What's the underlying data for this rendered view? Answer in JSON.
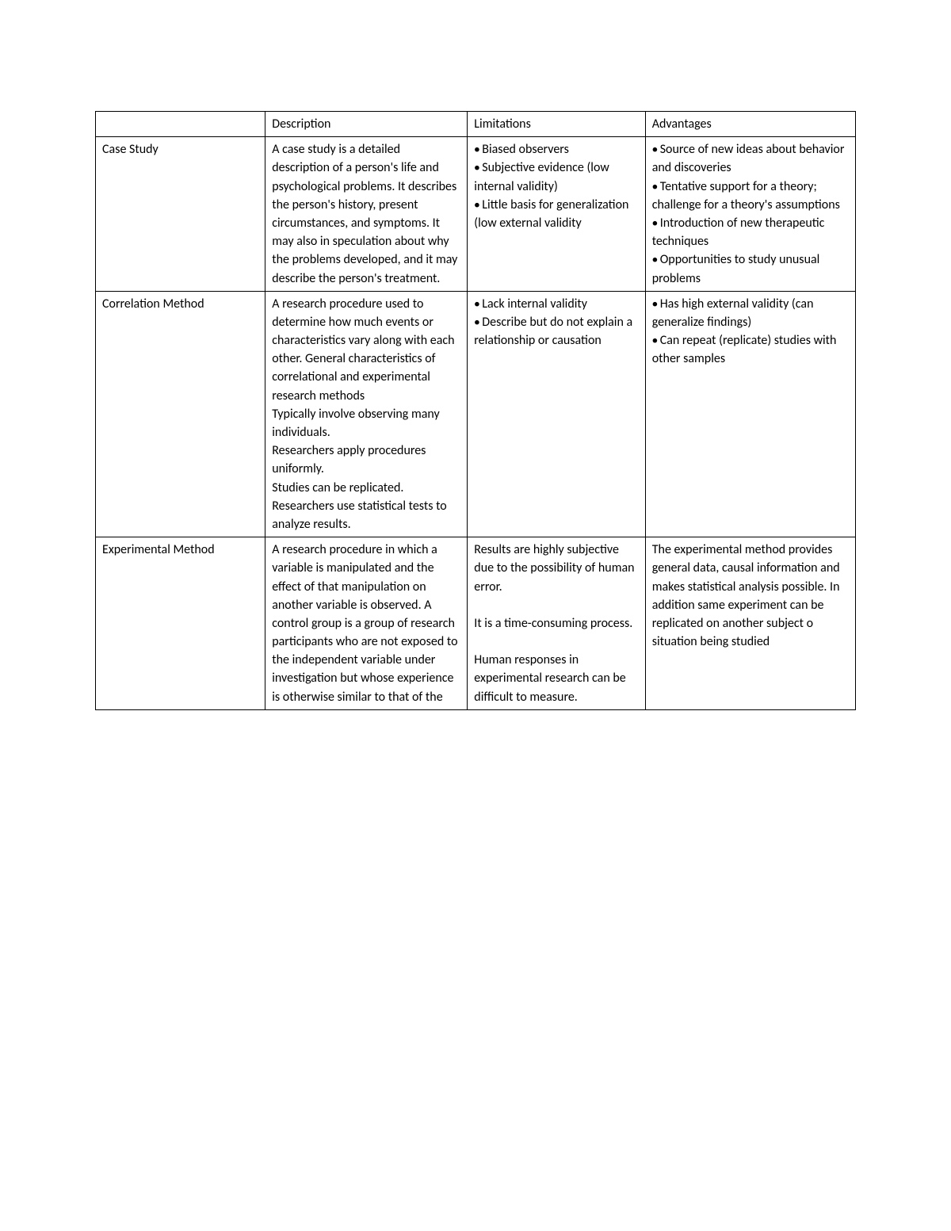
{
  "table": {
    "columns": [
      "",
      "Description",
      "Limitations",
      "Advantages"
    ],
    "col_widths_pct": [
      21,
      25,
      22,
      26
    ],
    "border_color": "#000000",
    "font_family": "Calibri, Arial, sans-serif",
    "font_size_pt": 12,
    "text_color": "#000000",
    "background_color": "#ffffff",
    "rows": [
      {
        "name": "Case Study",
        "description": "A case study is a detailed description of a person's life and psychological problems. It describes the person's history, present circumstances, and symptoms. It may also in speculation about why the problems developed, and it may describe the person's treatment.",
        "limitations_bullets": [
          "Biased observers",
          "Subjective evidence (low internal validity)",
          "Little basis for generalization (low external validity"
        ],
        "advantages_bullets": [
          "Source of new ideas about behavior and discoveries",
          "Tentative support for a theory; challenge for a theory's assumptions",
          "Introduction of new therapeutic techniques",
          "Opportunities to study unusual problems"
        ]
      },
      {
        "name": "Correlation Method",
        "description": "A research procedure used to determine how much events or characteristics vary along with each other. General characteristics of correlational and experimental research methods\nTypically involve observing many individuals.\nResearchers apply procedures uniformly.\nStudies can be replicated.\nResearchers use statistical tests to analyze results.",
        "limitations_bullets": [
          "Lack internal validity",
          "Describe but do not explain a relationship or causation"
        ],
        "advantages_bullets": [
          "Has high external validity (can generalize findings)",
          "Can repeat (replicate) studies with other samples"
        ]
      },
      {
        "name": "Experimental Method",
        "description": "A research procedure in which a variable is manipulated and the effect of that manipulation on another variable is observed. A control group is a group of research participants who are not exposed to the independent variable under investigation but whose experience is otherwise similar to that of the",
        "limitations_text": "Results are highly subjective due to the possibility of human error.\n\nIt is a time-consuming process.\n\nHuman responses in experimental research can be difficult to measure.",
        "advantages_text": "The experimental method provides general data, causal information and makes statistical analysis possible. In addition same experiment can be replicated on another subject o situation being studied"
      }
    ]
  }
}
